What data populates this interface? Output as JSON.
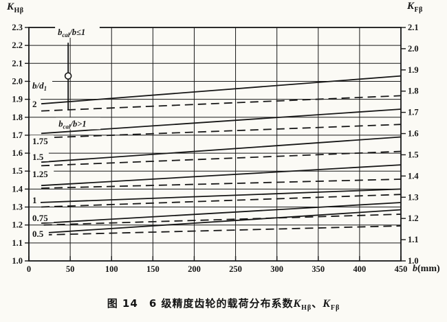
{
  "colors": {
    "ink": "#161616",
    "paper": "#fbfaf5"
  },
  "axes": {
    "left": {
      "base": "K",
      "sub": "Hβ"
    },
    "right": {
      "base": "K",
      "sub": "Fβ"
    },
    "x": {
      "base": "b",
      "unit": "(mm)"
    }
  },
  "caption": {
    "fig": "图 14",
    "text": "6 级精度齿轮的载荷分布系数",
    "k1": {
      "base": "K",
      "sub": "Hβ"
    },
    "sep": "、",
    "k2": {
      "base": "K",
      "sub": "Fβ"
    }
  },
  "chart_data": {
    "type": "line",
    "title": "图14 6级精度齿轮的载荷分布系数KHβ、KFβ",
    "grid": true,
    "x_axis": {
      "label": "b(mm)",
      "min": 0,
      "max": 450,
      "tick_labels": [
        "0",
        "50",
        "100",
        "150",
        "200",
        "250",
        "300",
        "350",
        "400",
        "450"
      ]
    },
    "y_left": {
      "label": "KHβ",
      "min": 1.0,
      "max": 2.3,
      "tick_labels": [
        "2.3",
        "2.2",
        "2.1",
        "2.0",
        "1.9",
        "1.8",
        "1.7",
        "1.6",
        "1.5",
        "1.4",
        "1.3",
        "1.2",
        "1.1",
        "1.0"
      ]
    },
    "y_right": {
      "label": "KFβ",
      "min": 1.0,
      "max": 2.1,
      "tick_labels": [
        "2.1",
        "2.0",
        "1.9",
        "1.8",
        "1.7",
        "1.6",
        "1.5",
        "1.4",
        "1.3",
        "1.2",
        "1.1",
        "1.0"
      ]
    },
    "family_label": {
      "pre": "b/d",
      "sub": "1",
      "k": 1.975
    },
    "curve_labels": [
      {
        "text": "2",
        "k": 1.872
      },
      {
        "text": "1.75",
        "k": 1.665
      },
      {
        "text": "1.5",
        "k": 1.578
      },
      {
        "text": "1.25",
        "k": 1.482
      },
      {
        "text": "1",
        "k": 1.337
      },
      {
        "text": "0.75",
        "k": 1.237
      },
      {
        "text": "0.5",
        "k": 1.149
      }
    ],
    "series": [
      {
        "name": "b/d1=2 bcal/b≤1",
        "style": "solid",
        "points": [
          [
            15,
            1.875
          ],
          [
            450,
            2.03
          ]
        ]
      },
      {
        "name": "b/d1=2 bcal/b>1",
        "style": "dashed",
        "points": [
          [
            15,
            1.835
          ],
          [
            450,
            1.92
          ]
        ]
      },
      {
        "name": "b/d1=1.75 bcal/b≤1",
        "style": "solid",
        "points": [
          [
            15,
            1.71
          ],
          [
            450,
            1.845
          ]
        ]
      },
      {
        "name": "b/d1=1.75 bcal/b>1",
        "style": "dashed",
        "points": [
          [
            15,
            1.685
          ],
          [
            450,
            1.76
          ]
        ]
      },
      {
        "name": "b/d1=1.5 bcal/b≤1",
        "style": "solid",
        "points": [
          [
            15,
            1.55
          ],
          [
            450,
            1.69
          ]
        ]
      },
      {
        "name": "b/d1=1.5 bcal/b>1",
        "style": "dashed",
        "points": [
          [
            15,
            1.53
          ],
          [
            450,
            1.61
          ]
        ]
      },
      {
        "name": "b/d1=1.25 bcal/b≤1",
        "style": "solid",
        "points": [
          [
            15,
            1.42
          ],
          [
            450,
            1.535
          ]
        ]
      },
      {
        "name": "b/d1=1.25 bcal/b>1",
        "style": "dashed",
        "points": [
          [
            15,
            1.405
          ],
          [
            450,
            1.455
          ]
        ]
      },
      {
        "name": "b/d1=1 bcal/b≤1",
        "style": "solid",
        "points": [
          [
            12,
            1.325
          ],
          [
            450,
            1.4
          ]
        ]
      },
      {
        "name": "b/d1=1 bcal/b>1",
        "style": "dashed",
        "points": [
          [
            15,
            1.3
          ],
          [
            450,
            1.37
          ]
        ]
      },
      {
        "name": "b/d1=0.75 bcal/b≤1",
        "style": "solid",
        "points": [
          [
            15,
            1.21
          ],
          [
            450,
            1.325
          ]
        ]
      },
      {
        "name": "b/d1=0.75 bcal/b>1",
        "style": "dashed",
        "points": [
          [
            18,
            1.2
          ],
          [
            450,
            1.26
          ]
        ]
      },
      {
        "name": "b/d1=0.5 bcal/b≤1",
        "style": "solid",
        "points": [
          [
            15,
            1.155
          ],
          [
            450,
            1.285
          ]
        ]
      },
      {
        "name": "b/d1=0.5 bcal/b>1",
        "style": "dashed",
        "points": [
          [
            18,
            1.145
          ],
          [
            450,
            1.195
          ]
        ]
      }
    ],
    "annotations": {
      "upper": {
        "pre": "b",
        "sub": "cal",
        "post": "/b≤1",
        "x_mm": 35,
        "k": 2.262
      },
      "lower": {
        "pre": "b",
        "sub": "cal",
        "post": "/b>1",
        "x_mm": 36,
        "k": 1.752
      },
      "marker": {
        "x_mm": 47.5,
        "k_top": 2.215,
        "k_bottom": 1.84,
        "circle_k": 2.03
      }
    }
  }
}
